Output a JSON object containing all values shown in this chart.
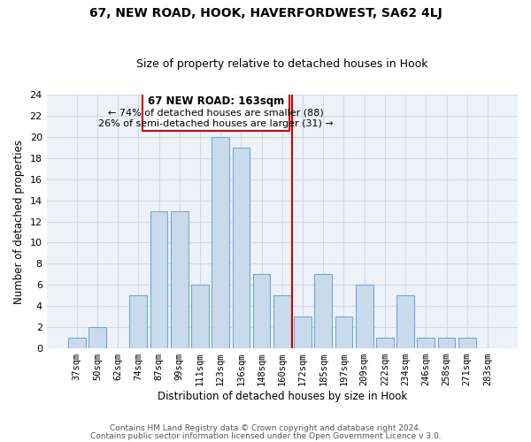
{
  "title1": "67, NEW ROAD, HOOK, HAVERFORDWEST, SA62 4LJ",
  "title2": "Size of property relative to detached houses in Hook",
  "xlabel": "Distribution of detached houses by size in Hook",
  "ylabel": "Number of detached properties",
  "categories": [
    "37sqm",
    "50sqm",
    "62sqm",
    "74sqm",
    "87sqm",
    "99sqm",
    "111sqm",
    "123sqm",
    "136sqm",
    "148sqm",
    "160sqm",
    "172sqm",
    "185sqm",
    "197sqm",
    "209sqm",
    "222sqm",
    "234sqm",
    "246sqm",
    "258sqm",
    "271sqm",
    "283sqm"
  ],
  "values": [
    1,
    2,
    0,
    5,
    13,
    13,
    6,
    20,
    19,
    7,
    5,
    3,
    7,
    3,
    6,
    1,
    5,
    1,
    1,
    1,
    0
  ],
  "bar_color": "#c9daea",
  "bar_edge_color": "#6fa8dc",
  "grid_color": "#d0d8e8",
  "marker_line_color": "#cc0000",
  "annotation_line1": "67 NEW ROAD: 163sqm",
  "annotation_line2": "← 74% of detached houses are smaller (88)",
  "annotation_line3": "26% of semi-detached houses are larger (31) →",
  "annotation_box_color": "#cc0000",
  "ylim": [
    0,
    24
  ],
  "yticks": [
    0,
    2,
    4,
    6,
    8,
    10,
    12,
    14,
    16,
    18,
    20,
    22,
    24
  ],
  "footnote1": "Contains HM Land Registry data © Crown copyright and database right 2024.",
  "footnote2": "Contains public sector information licensed under the Open Government Licence v 3.0.",
  "bg_color": "#ffffff",
  "plot_bg_color": "#eef2f8"
}
